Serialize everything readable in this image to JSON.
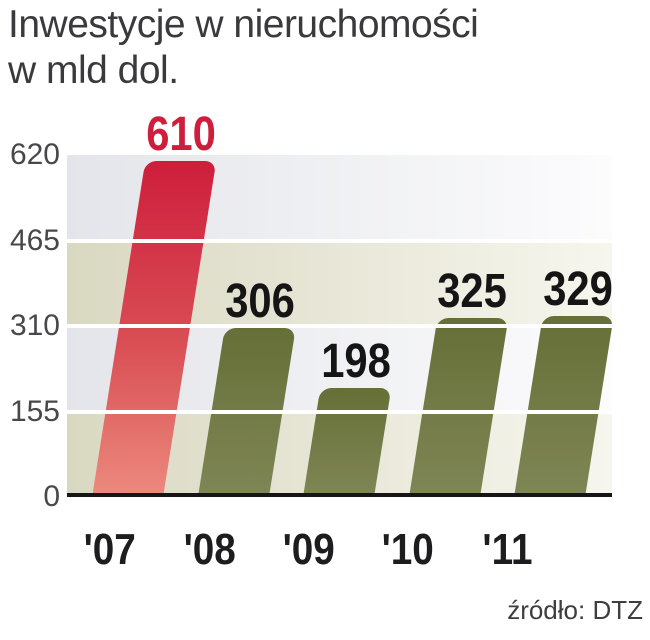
{
  "title": {
    "line1": "Inwestycje w nieruchomości",
    "line2": "w mld dol."
  },
  "source_label": "źródło: DTZ",
  "chart_data": {
    "type": "bar",
    "title": "Inwestycje w nieruchomości w mld dol.",
    "categories": [
      "'07",
      "'08",
      "'09",
      "'10",
      "'11"
    ],
    "values": [
      610,
      306,
      198,
      325,
      329
    ],
    "highlight_index": 0,
    "xlabel": "",
    "ylabel": "",
    "yticks": [
      0,
      155,
      310,
      465,
      620
    ],
    "ylim": [
      0,
      620
    ],
    "grid": "horizontal-white-lines",
    "legend": "none",
    "bar_style": "right-slanted bars with rounded tops",
    "source": "źródło: DTZ",
    "colors": {
      "highlight_bar_top": "#ce1e3c",
      "highlight_bar_mid": "#d94f55",
      "highlight_bar_bottom": "#ec8a7e",
      "bar_top": "#666f37",
      "bar_bottom": "#7f8656",
      "band_gray": "#e4e5ea",
      "band_gray_fade": "#fcfcfd",
      "band_beige": "#d9d8c1",
      "band_beige_fade": "#f7f6ee",
      "gridline": "#ffffff",
      "axis": "#161616",
      "value_label": "#151515",
      "highlight_value_label": "#ce1e3c"
    }
  }
}
